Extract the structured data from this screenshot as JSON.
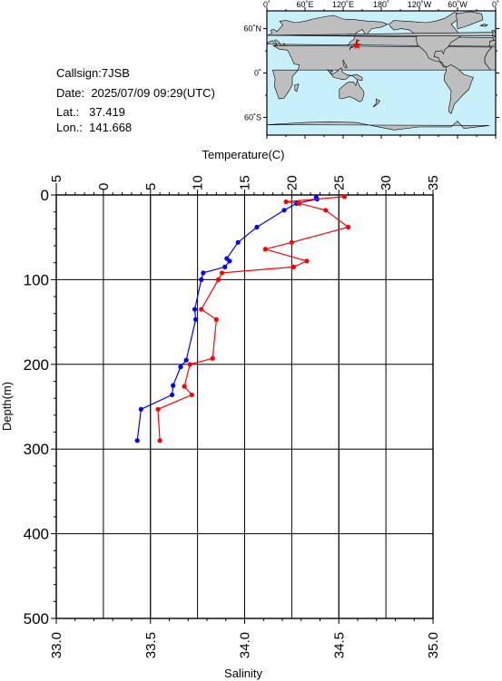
{
  "station": {
    "callsign_label": "Callsign:",
    "callsign": "7JSB",
    "date_label": "Date:",
    "date": "2025/07/09 09:29(UTC)",
    "lat_label": "Lat.:",
    "lat": "37.419",
    "lon_label": "Lon.:",
    "lon": "141.668"
  },
  "map": {
    "lon_ticks": [
      "0˚",
      "60˚E",
      "120˚E",
      "180˚",
      "120˚W",
      "60˚W",
      "0˚"
    ],
    "lat_ticks": [
      "60˚N",
      "0˚",
      "60˚S"
    ],
    "ocean_color": "#c8f0fa",
    "land_color": "#bebebe",
    "marker_color": "#ff0000",
    "marker_lat": 37.419,
    "marker_lon": 141.668
  },
  "chart_data": {
    "type": "line",
    "title": "",
    "top_axis": {
      "label": "Temperature(C)",
      "ticks": [
        "−5",
        "0",
        "5",
        "10",
        "15",
        "20",
        "25",
        "30",
        "35"
      ],
      "range": [
        -5,
        35
      ]
    },
    "bottom_axis": {
      "label": "Salinity",
      "ticks": [
        "33.0",
        "33.5",
        "34.0",
        "34.5",
        "35.0"
      ],
      "range": [
        33.0,
        35.0
      ]
    },
    "y_axis": {
      "label": "Depth(m)",
      "ticks": [
        "0",
        "100",
        "200",
        "300",
        "400",
        "500"
      ],
      "range": [
        0,
        500
      ],
      "inverted": true
    },
    "grid": true,
    "series": [
      {
        "axis": "temperature",
        "color": "#0000ff",
        "points": [
          [
            22.6,
            3
          ],
          [
            22.7,
            5
          ],
          [
            20.5,
            10
          ],
          [
            19.2,
            18
          ],
          [
            16.3,
            38
          ],
          [
            14.3,
            56
          ],
          [
            13.1,
            75
          ],
          [
            13.4,
            78
          ],
          [
            12.9,
            85
          ],
          [
            10.6,
            92
          ],
          [
            10.4,
            100
          ],
          [
            9.7,
            135
          ],
          [
            9.8,
            147
          ],
          [
            8.8,
            195
          ],
          [
            8.2,
            203
          ],
          [
            7.4,
            225
          ],
          [
            7.3,
            236
          ],
          [
            4.0,
            253
          ],
          [
            3.6,
            290
          ]
        ]
      },
      {
        "axis": "salinity",
        "color": "#ff0000",
        "points": [
          [
            34.53,
            2
          ],
          [
            34.22,
            8
          ],
          [
            34.29,
            10
          ],
          [
            34.43,
            18
          ],
          [
            34.55,
            38
          ],
          [
            34.25,
            56
          ],
          [
            34.11,
            64
          ],
          [
            34.33,
            78
          ],
          [
            34.26,
            85
          ],
          [
            33.88,
            92
          ],
          [
            33.86,
            100
          ],
          [
            33.77,
            135
          ],
          [
            33.85,
            147
          ],
          [
            33.83,
            193
          ],
          [
            33.71,
            200
          ],
          [
            33.68,
            226
          ],
          [
            33.72,
            236
          ],
          [
            33.54,
            253
          ],
          [
            33.55,
            290
          ]
        ]
      }
    ]
  }
}
